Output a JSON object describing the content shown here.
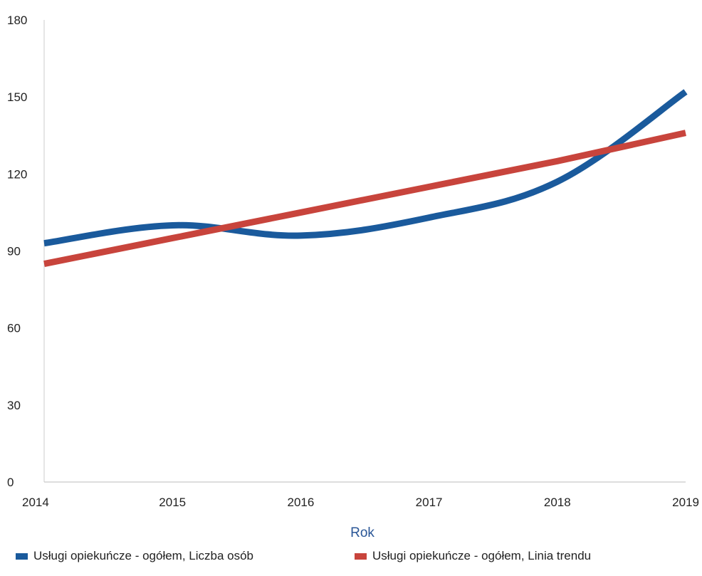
{
  "chart_data": {
    "type": "line",
    "x": [
      2014,
      2015,
      2016,
      2017,
      2018,
      2019
    ],
    "xlabel": "Rok",
    "ylabel": "",
    "ylim": [
      0,
      180
    ],
    "yticks": [
      0,
      30,
      60,
      90,
      120,
      150,
      180
    ],
    "grid": false,
    "legend_position": "bottom",
    "series": [
      {
        "name": "Usługi opiekuńcze - ogółem, Liczba osób",
        "color": "#1a5a9c",
        "values": [
          93,
          100,
          96,
          103,
          117,
          152
        ]
      },
      {
        "name": "Usługi opiekuńcze - ogółem, Linia trendu",
        "color": "#c8443c",
        "values": [
          85,
          95,
          105,
          115,
          125,
          136
        ]
      }
    ],
    "axis_title_color": "#2b5797"
  }
}
